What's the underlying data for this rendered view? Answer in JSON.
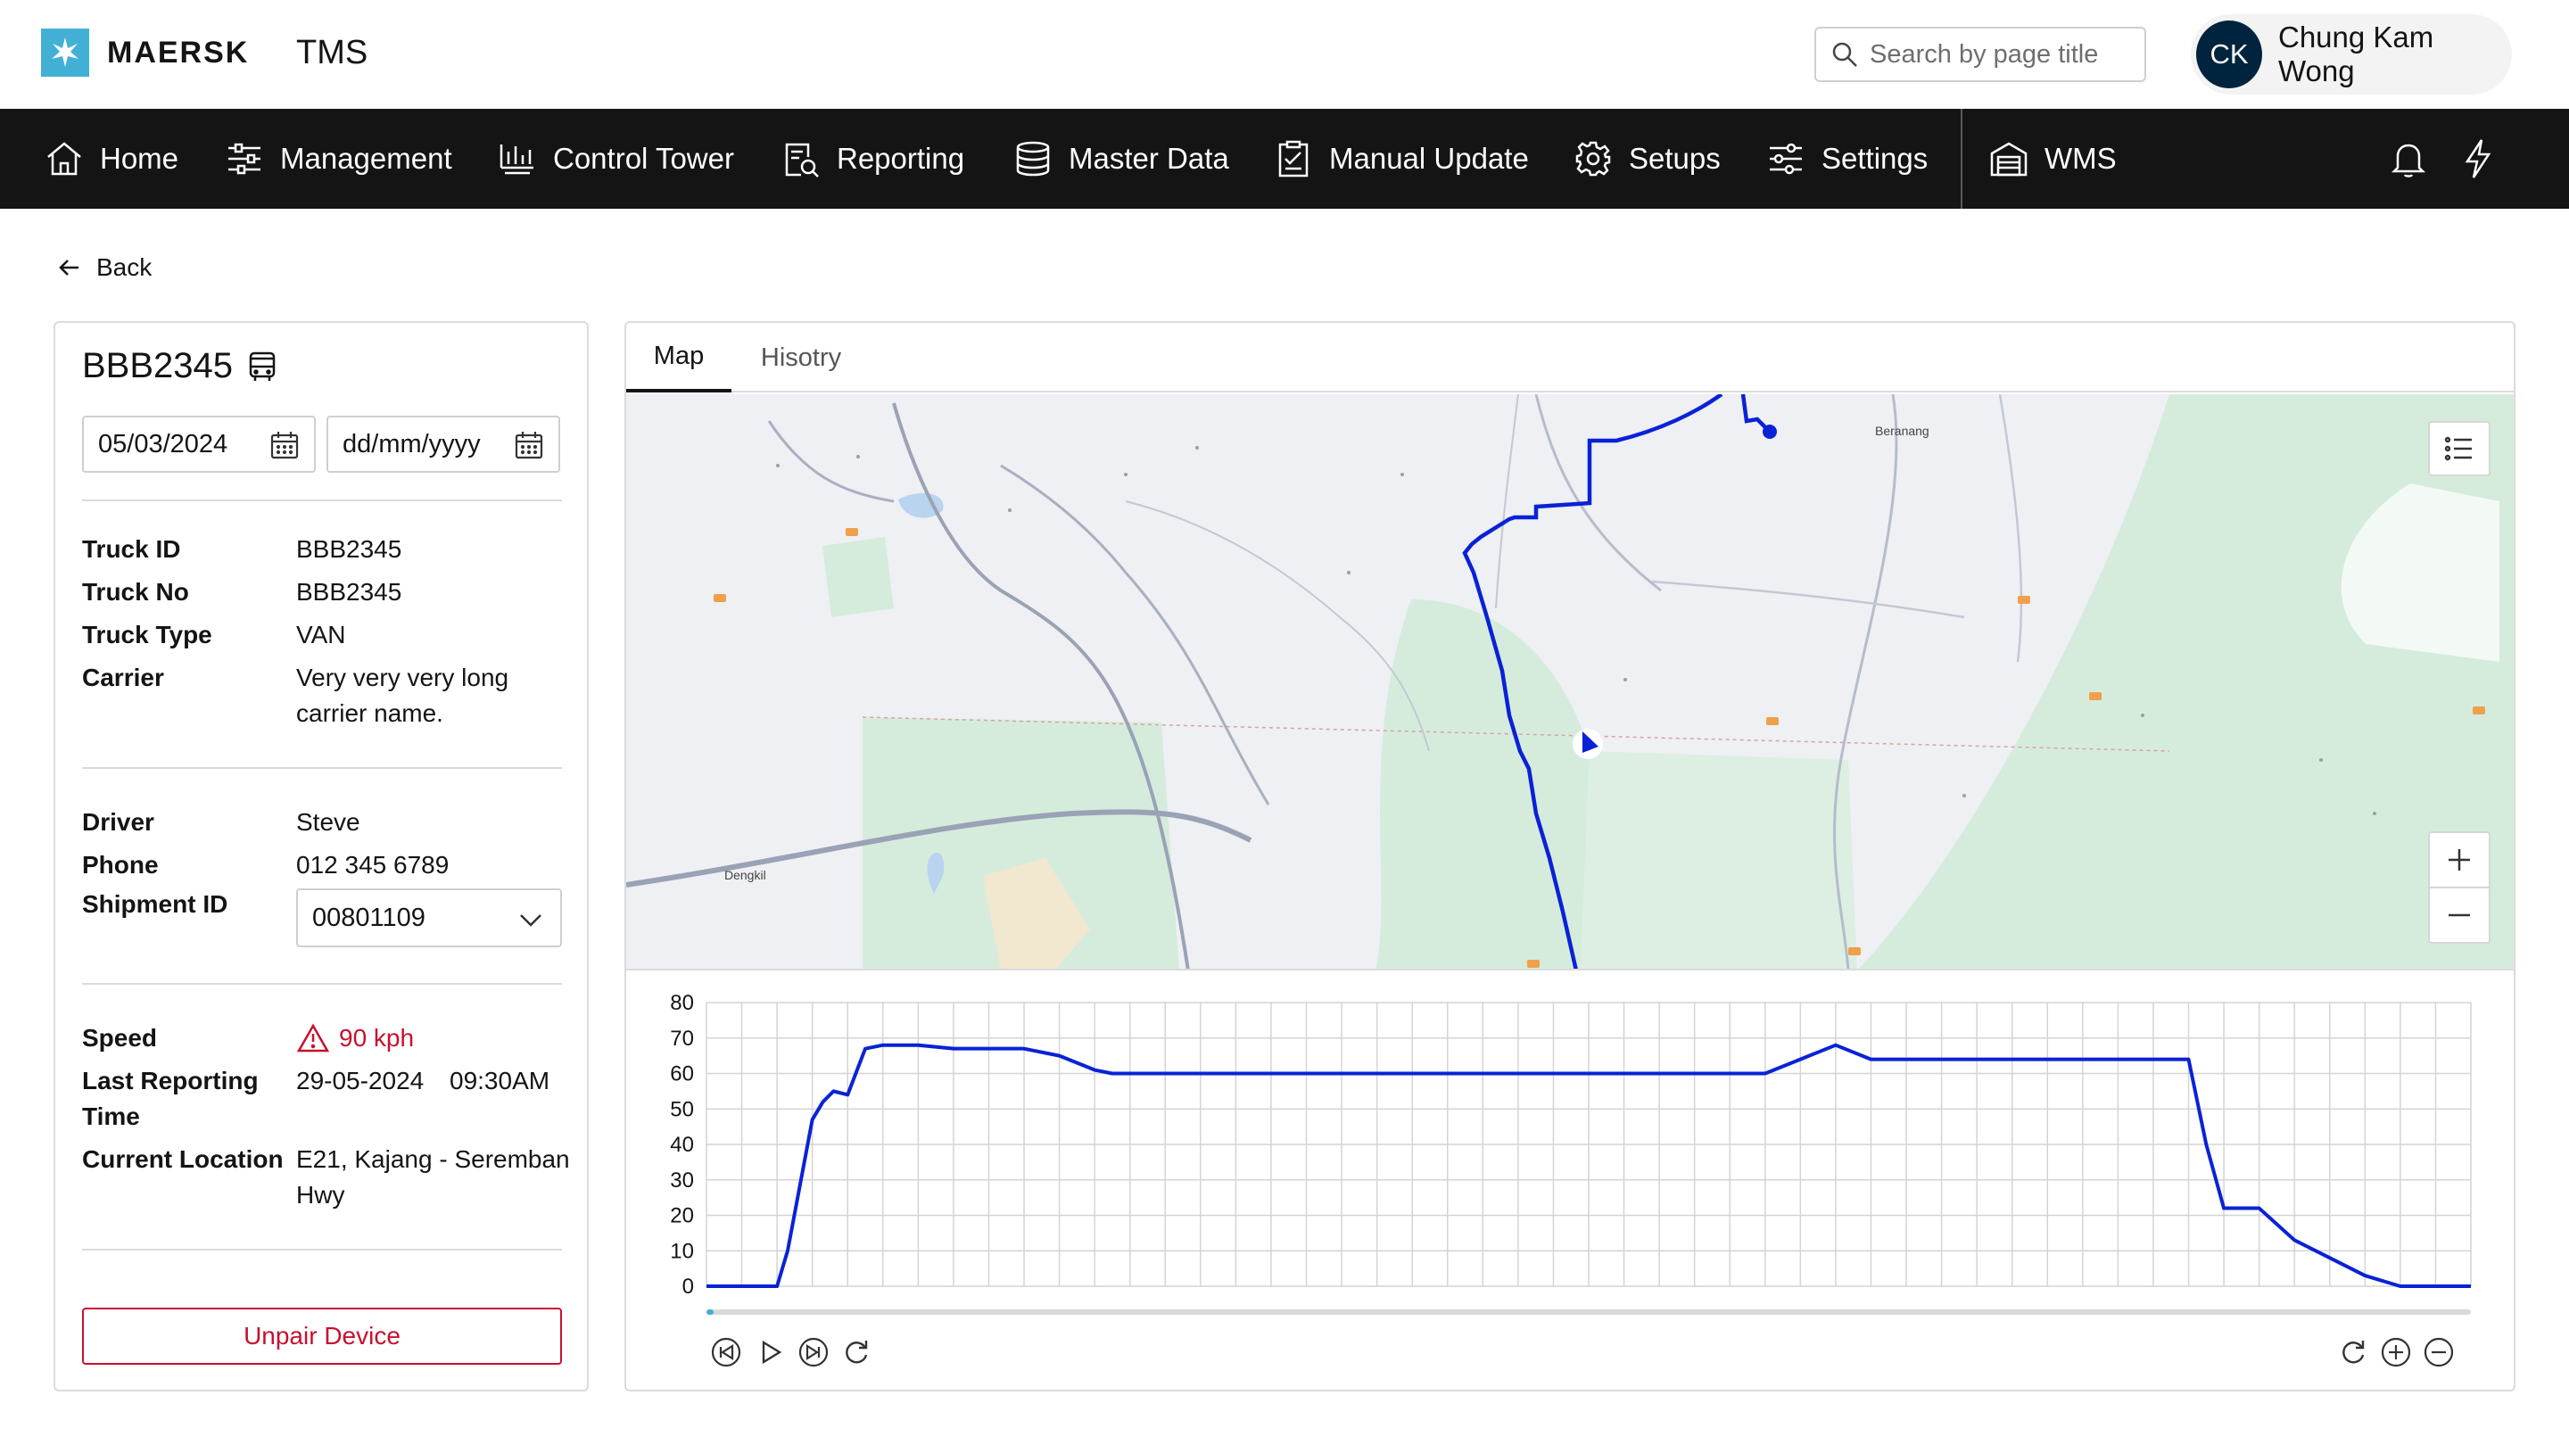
{
  "header": {
    "brand": "MAERSK",
    "app_name": "TMS",
    "search_placeholder": "Search by page title",
    "user": {
      "initials": "CK",
      "name": "Chung Kam Wong"
    }
  },
  "nav": {
    "items": [
      {
        "label": "Home",
        "icon": "home-icon"
      },
      {
        "label": "Management",
        "icon": "sliders-icon"
      },
      {
        "label": "Control Tower",
        "icon": "chart-monitor-icon"
      },
      {
        "label": "Reporting",
        "icon": "report-icon"
      },
      {
        "label": "Master Data",
        "icon": "database-icon"
      },
      {
        "label": "Manual Update",
        "icon": "clipboard-icon"
      },
      {
        "label": "Setups",
        "icon": "gear-icon"
      },
      {
        "label": "Settings",
        "icon": "settings-sliders-icon"
      }
    ],
    "wms": {
      "label": "WMS",
      "icon": "warehouse-icon"
    },
    "right_icons": [
      "bell-icon",
      "lightning-icon"
    ]
  },
  "back_label": "Back",
  "truck_panel": {
    "title": "BBB2345",
    "start_date": "05/03/2024",
    "end_date_placeholder": "dd/mm/yyyy",
    "info": {
      "truck_id_label": "Truck ID",
      "truck_id": "BBB2345",
      "truck_no_label": "Truck No",
      "truck_no": "BBB2345",
      "truck_type_label": "Truck Type",
      "truck_type": "VAN",
      "carrier_label": "Carrier",
      "carrier_line1": "Very very very long",
      "carrier_line2": "carrier name."
    },
    "driver": {
      "driver_label": "Driver",
      "driver": "Steve",
      "phone_label": "Phone",
      "phone": "012 345 6789",
      "shipment_label": "Shipment ID",
      "shipment_id": "00801109"
    },
    "status": {
      "speed_label": "Speed",
      "speed": "90 kph",
      "last_reporting_label_1": "Last Reporting",
      "last_reporting_label_2": "Time",
      "last_reporting_date": "29-05-2024",
      "last_reporting_time": "09:30AM",
      "location_label": "Current Location",
      "location_line1": "E21, Kajang - Seremban",
      "location_line2": "Hwy"
    },
    "unpair_label": "Unpair Device"
  },
  "tabs": [
    {
      "label": "Map",
      "active": true
    },
    {
      "label": "Hisotry",
      "active": false
    }
  ],
  "map": {
    "labels": [
      "Beranang",
      "Dengkil"
    ],
    "colors": {
      "route": "#0a22d6",
      "park": "#d5ecdd",
      "road": "#9aa3b5"
    }
  },
  "chart_data": {
    "type": "line",
    "ylim": [
      0,
      80
    ],
    "yticks": [
      "80",
      "70",
      "60",
      "50",
      "40",
      "30",
      "20",
      "10",
      "0"
    ],
    "x": [
      0,
      2,
      2.3,
      3,
      3.3,
      3.6,
      4,
      4.5,
      5,
      6,
      7,
      8,
      9,
      10,
      11,
      11.5,
      12,
      13,
      30,
      31,
      32,
      33,
      39,
      40,
      41,
      42,
      42.5,
      43,
      44,
      45,
      46,
      47,
      48,
      49,
      50
    ],
    "series": [
      {
        "color": "#0a22d6",
        "values": [
          0,
          0,
          10,
          47,
          52,
          55,
          54,
          67,
          68,
          68,
          67,
          67,
          67,
          65,
          61,
          60,
          60,
          60,
          60,
          64,
          68,
          64,
          64,
          64,
          64,
          64,
          40,
          22,
          22,
          13,
          8,
          3,
          0,
          0,
          0
        ]
      }
    ]
  }
}
